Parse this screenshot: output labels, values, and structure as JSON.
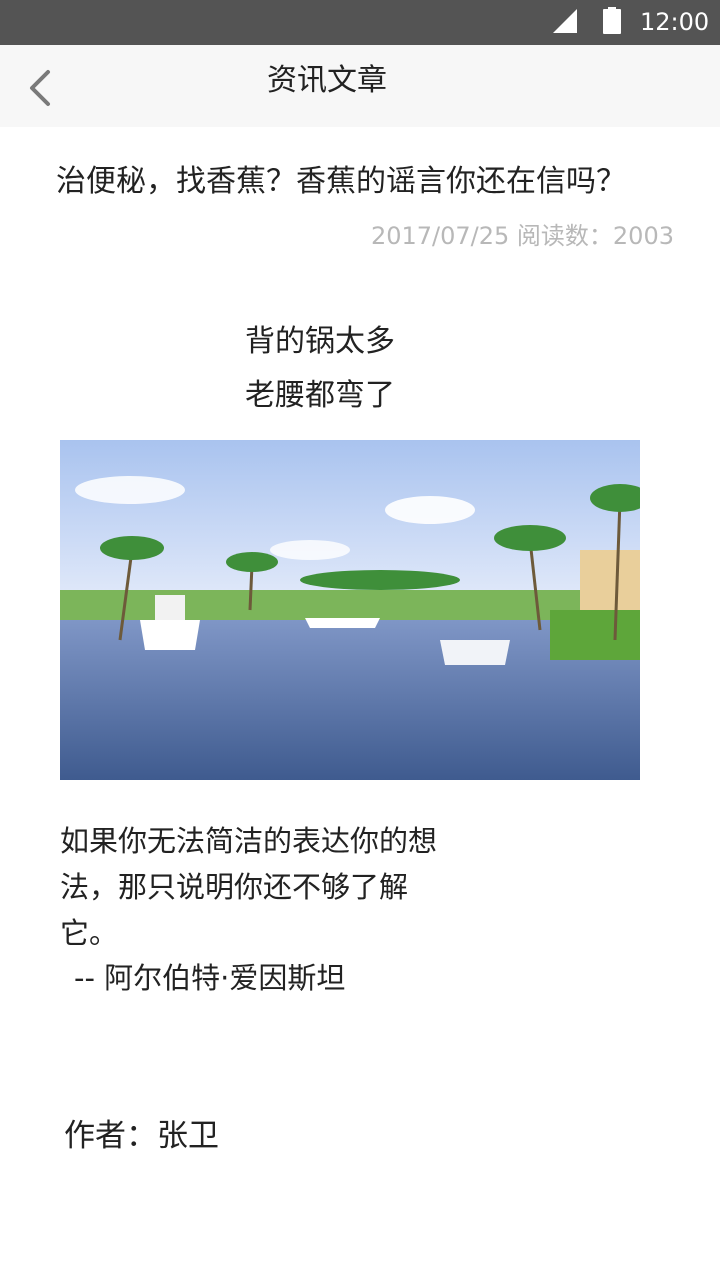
{
  "status_bar": {
    "time": "12:00",
    "icons": [
      "signal-icon",
      "battery-icon"
    ]
  },
  "app_bar": {
    "title": "资讯文章",
    "back_icon": "chevron-left-icon"
  },
  "article": {
    "title": "治便秘，找香蕉？香蕉的谣言你还在信吗？",
    "meta": "2017/07/25 阅读数：2003",
    "subtitle_line1": "背的锅太多",
    "subtitle_line2": "老腰都弯了",
    "image": "photo of a tropical canal with palm trees and boats",
    "quote": "如果你无法简洁的表达你的想法，那只说明你还不够了解它。",
    "quote_author": "-- 阿尔伯特·爱因斯坦",
    "author": "作者：张卫"
  },
  "colors": {
    "status_bar": "#545454",
    "app_bar": "#f7f7f7",
    "meta_text": "#b8b8b8",
    "sky": "#c9d9f5",
    "water": "#4d6aa0",
    "grass": "#6fbf4a"
  }
}
